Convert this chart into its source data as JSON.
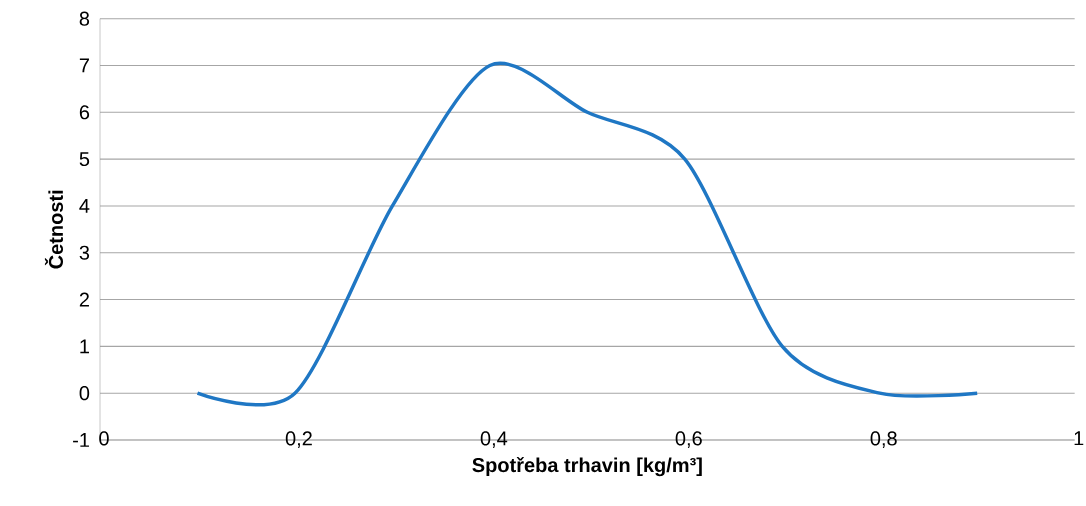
{
  "chart_data": {
    "type": "line",
    "xlabel": "Spotřeba trhavin [kg/m³]",
    "ylabel": "Četnosti",
    "x": [
      0.1,
      0.2,
      0.3,
      0.4,
      0.5,
      0.6,
      0.7,
      0.8,
      0.9
    ],
    "series": [
      {
        "color": "#1f77c4",
        "values": [
          0,
          0,
          4,
          7,
          6,
          5,
          1,
          0,
          0
        ]
      }
    ],
    "xlim": [
      0,
      1
    ],
    "ylim": [
      -1,
      8
    ],
    "xticks": [
      0,
      {
        "value": 0.2,
        "label": "0,2"
      },
      {
        "value": 0.4,
        "label": "0,4"
      },
      {
        "value": 0.6,
        "label": "0,6"
      },
      {
        "value": 0.8,
        "label": "0,8"
      },
      1
    ],
    "yticks": [
      -1,
      0,
      1,
      2,
      3,
      4,
      5,
      6,
      7,
      8
    ],
    "grid": "y",
    "marker": "none",
    "line_style": "solid"
  }
}
